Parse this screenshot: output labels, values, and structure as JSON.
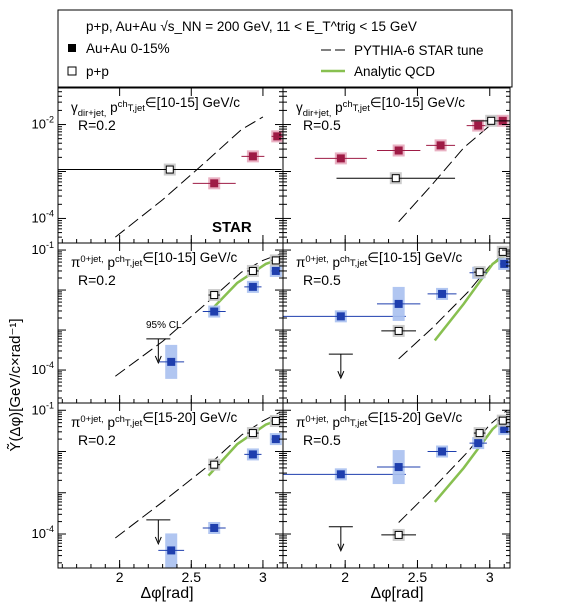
{
  "legend": {
    "header": "p+p, Au+Au  √s_NN = 200 GeV, 11 < E_T^trig < 15 GeV",
    "entries": [
      {
        "key": "auau",
        "label": "Au+Au 0-15%"
      },
      {
        "key": "pp",
        "label": "p+p"
      },
      {
        "key": "pythia",
        "label": "PYTHIA-6 STAR tune"
      },
      {
        "key": "qcd",
        "label": "Analytic QCD"
      }
    ]
  },
  "axes": {
    "xlabel": "Δφ[rad]",
    "ylabel": "Ỹ(Δφ)[GeV/c×rad⁻¹]",
    "xticks": [
      2,
      2.5,
      3
    ],
    "xlim": [
      1.57,
      3.14
    ],
    "scale_y": "log"
  },
  "colors": {
    "gamma_auau": "#9e1b45",
    "gamma_auau_box": "#e7a9bd",
    "pi_auau": "#1f3fae",
    "pi_auau_box": "#a9c0f0",
    "pp_face": "#ffffff",
    "pp_box": "#c6c6c6",
    "qcd": "#88c050",
    "pythia": "#000000"
  },
  "star_label": "STAR",
  "cl_label": "95% CL",
  "chart_data": [
    {
      "id": "p1",
      "type": "scatter",
      "title": "γ_dir+jet, p^ch_T,jet∈[10-15] GeV/c",
      "r_label": "R=0.2",
      "ylim": [
        3e-05,
        0.06
      ],
      "yticks": [
        0.0001,
        0.01
      ],
      "yticklabels": [
        "10^-4",
        "10^-2"
      ],
      "pythia": [
        [
          1.97,
          4e-05
        ],
        [
          2.3,
          0.00025
        ],
        [
          2.6,
          0.0016
        ],
        [
          2.85,
          0.0078
        ],
        [
          3.0,
          0.0145
        ]
      ],
      "series": [
        {
          "name": "Au+Au 0-15%",
          "points": [
            [
              2.66,
              0.00056,
              0.15
            ],
            [
              2.93,
              0.0021,
              0.08
            ],
            [
              3.1,
              0.0056,
              0.04
            ]
          ]
        },
        {
          "name": "p+p",
          "points": [
            [
              2.35,
              0.0011,
              0.78
            ]
          ]
        }
      ]
    },
    {
      "id": "p2",
      "type": "scatter",
      "title": "γ_dir+jet, p^ch_T,jet∈[10-15] GeV/c",
      "r_label": "R=0.5",
      "ylim": [
        3e-05,
        0.06
      ],
      "pythia": [
        [
          2.37,
          8.5e-05
        ],
        [
          2.6,
          0.00052
        ],
        [
          2.82,
          0.0032
        ],
        [
          3.0,
          0.0095
        ],
        [
          3.12,
          0.0125
        ]
      ],
      "series": [
        {
          "name": "Au+Au 0-15%",
          "points": [
            [
              1.97,
              0.0019,
              0.18
            ],
            [
              2.37,
              0.0028,
              0.15
            ],
            [
              2.66,
              0.0036,
              0.1
            ],
            [
              2.92,
              0.0095,
              0.08
            ],
            [
              3.09,
              0.012,
              0.04
            ]
          ]
        },
        {
          "name": "p+p",
          "points": [
            [
              2.35,
              0.00072,
              0.41
            ],
            [
              3.01,
              0.012,
              0.14
            ]
          ]
        }
      ]
    },
    {
      "id": "p3",
      "type": "scatter",
      "title": "π^0+jet, p^ch_T,jet∈[10-15] GeV/c",
      "r_label": "R=0.2",
      "ylim": [
        1.5e-05,
        0.15
      ],
      "yticks": [
        0.0001,
        0.1
      ],
      "yticklabels": [
        "10^-4",
        "10^-1"
      ],
      "pythia": [
        [
          1.97,
          7e-05
        ],
        [
          2.3,
          0.00052
        ],
        [
          2.6,
          0.0045
        ],
        [
          2.85,
          0.028
        ],
        [
          3.0,
          0.055
        ],
        [
          3.12,
          0.08
        ]
      ],
      "qcd": [
        [
          2.62,
          0.0027
        ],
        [
          2.82,
          0.015
        ],
        [
          3.02,
          0.045
        ],
        [
          3.12,
          0.06
        ]
      ],
      "upper_limit": {
        "x": 2.27,
        "y": 0.0006
      },
      "series": [
        {
          "name": "Au+Au 0-15%",
          "points": [
            [
              2.36,
              0.00016,
              0.09
            ],
            [
              2.66,
              0.0029,
              0.08
            ],
            [
              2.93,
              0.012,
              0.06
            ],
            [
              3.09,
              0.03,
              0.03
            ]
          ]
        },
        {
          "name": "p+p",
          "points": [
            [
              2.66,
              0.0075,
              0.04
            ],
            [
              2.93,
              0.03,
              0.04
            ],
            [
              3.09,
              0.055,
              0.03
            ]
          ]
        }
      ]
    },
    {
      "id": "p4",
      "type": "scatter",
      "title": "π^0+jet, p^ch_T,jet∈[10-15] GeV/c",
      "r_label": "R=0.5",
      "ylim": [
        1.5e-05,
        0.15
      ],
      "pythia": [
        [
          2.37,
          0.00019
        ],
        [
          2.6,
          0.0011
        ],
        [
          2.85,
          0.009
        ],
        [
          3.0,
          0.04
        ],
        [
          3.12,
          0.095
        ]
      ],
      "qcd": [
        [
          2.62,
          0.00055
        ],
        [
          2.82,
          0.0045
        ],
        [
          3.02,
          0.045
        ],
        [
          3.12,
          0.08
        ]
      ],
      "upper_limit": {
        "x": 1.97,
        "y": 0.00025
      },
      "series": [
        {
          "name": "Au+Au 0-15%",
          "points": [
            [
              1.97,
              0.0022,
              0.45
            ],
            [
              2.37,
              0.0045,
              0.15
            ],
            [
              2.67,
              0.008,
              0.1
            ],
            [
              2.92,
              0.027,
              0.06
            ],
            [
              3.1,
              0.045,
              0.03
            ]
          ]
        },
        {
          "name": "p+p",
          "points": [
            [
              2.37,
              0.00095,
              0.12
            ],
            [
              2.93,
              0.028,
              0.04
            ],
            [
              3.09,
              0.09,
              0.03
            ]
          ]
        }
      ]
    },
    {
      "id": "p5",
      "type": "scatter",
      "title": "π^0+jet, p^ch_T,jet∈[15-20] GeV/c",
      "r_label": "R=0.2",
      "ylim": [
        1.5e-05,
        0.15
      ],
      "yticks": [
        0.0001,
        0.1
      ],
      "yticklabels": [
        "10^-4",
        "10^-1"
      ],
      "pythia": [
        [
          1.97,
          8e-05
        ],
        [
          2.3,
          0.0006
        ],
        [
          2.6,
          0.004
        ],
        [
          2.85,
          0.025
        ],
        [
          3.0,
          0.055
        ],
        [
          3.12,
          0.09
        ]
      ],
      "qcd": [
        [
          2.62,
          0.0026
        ],
        [
          2.82,
          0.015
        ],
        [
          3.02,
          0.045
        ],
        [
          3.12,
          0.06
        ]
      ],
      "upper_limit": {
        "x": 2.27,
        "y": 0.00022
      },
      "series": [
        {
          "name": "Au+Au 0-15%",
          "points": [
            [
              2.36,
              4e-05,
              0.09
            ],
            [
              2.66,
              0.00014,
              0.08
            ],
            [
              2.93,
              0.0085,
              0.06
            ],
            [
              3.09,
              0.02,
              0.03
            ]
          ]
        },
        {
          "name": "p+p",
          "points": [
            [
              2.66,
              0.0048,
              0.04
            ],
            [
              2.93,
              0.028,
              0.04
            ],
            [
              3.09,
              0.055,
              0.03
            ]
          ]
        }
      ]
    },
    {
      "id": "p6",
      "type": "scatter",
      "title": "π^0+jet, p^ch_T,jet∈[15-20] GeV/c",
      "r_label": "R=0.5",
      "ylim": [
        1.5e-05,
        0.15
      ],
      "pythia": [
        [
          2.37,
          0.00019
        ],
        [
          2.6,
          0.0012
        ],
        [
          2.85,
          0.01
        ],
        [
          3.0,
          0.045
        ],
        [
          3.12,
          0.1
        ]
      ],
      "qcd": [
        [
          2.62,
          0.0006
        ],
        [
          2.82,
          0.004
        ],
        [
          3.02,
          0.035
        ],
        [
          3.12,
          0.07
        ]
      ],
      "upper_limit": {
        "x": 1.97,
        "y": 0.00015
      },
      "series": [
        {
          "name": "Au+Au 0-15%",
          "points": [
            [
              1.97,
              0.0028,
              0.45
            ],
            [
              2.37,
              0.0042,
              0.15
            ],
            [
              2.67,
              0.01,
              0.1
            ],
            [
              2.92,
              0.016,
              0.06
            ],
            [
              3.1,
              0.035,
              0.03
            ]
          ]
        },
        {
          "name": "p+p",
          "points": [
            [
              2.37,
              9.5e-05,
              0.12
            ],
            [
              2.93,
              0.028,
              0.04
            ],
            [
              3.09,
              0.056,
              0.03
            ]
          ]
        }
      ]
    }
  ]
}
